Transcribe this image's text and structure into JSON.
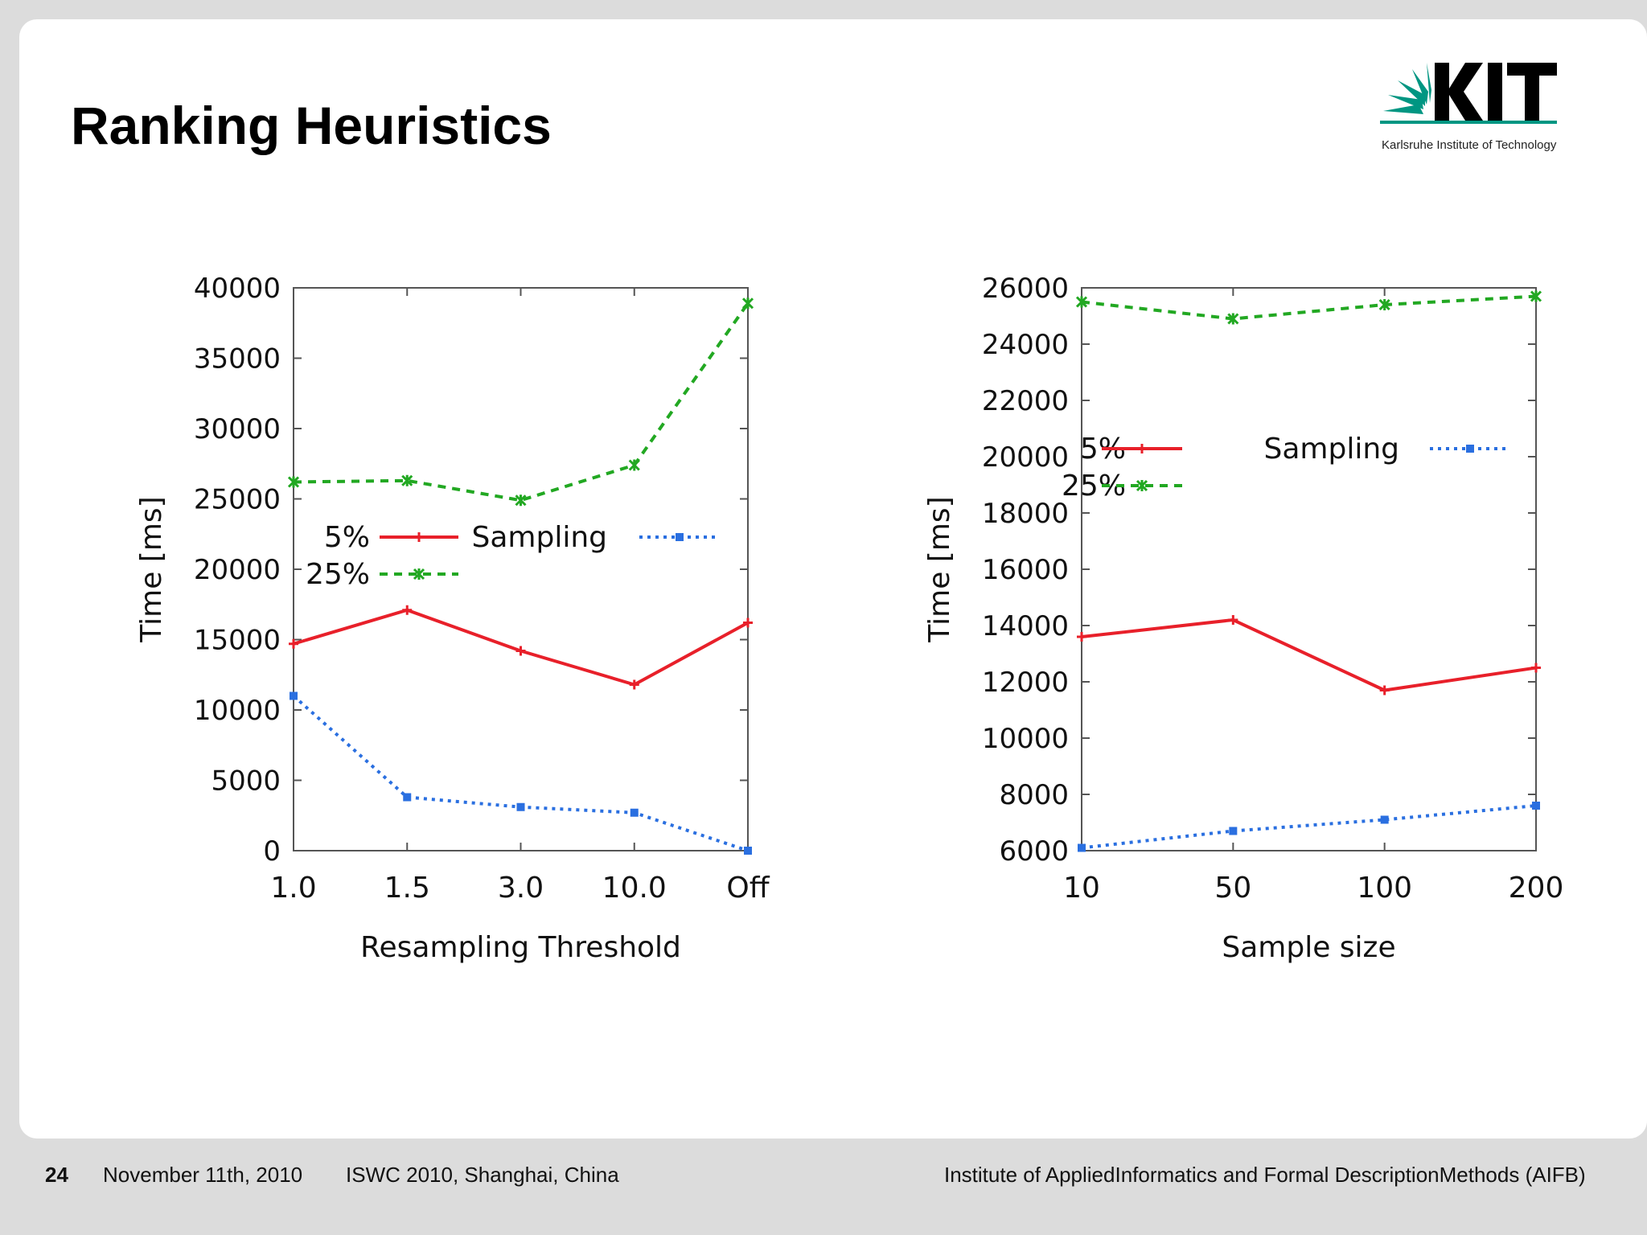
{
  "slide": {
    "title": "Ranking Heuristics",
    "logo": {
      "text": "KIT",
      "subtitle": "Karlsruhe Institute of Technology",
      "color": "#009682"
    }
  },
  "footer": {
    "page_number": "24",
    "date": "November 11th, 2010",
    "event": "ISWC 2010, Shanghai, China",
    "institute": "Institute of AppliedInformatics and Formal DescriptionMethods (AIFB)"
  },
  "chart_data": [
    {
      "type": "line",
      "xlabel": "Resampling Threshold",
      "ylabel": "Time [ms]",
      "categories": [
        "1.0",
        "1.5",
        "3.0",
        "10.0",
        "Off"
      ],
      "ylim": [
        0,
        40000
      ],
      "yticks": [
        0,
        5000,
        10000,
        15000,
        20000,
        25000,
        30000,
        35000,
        40000
      ],
      "legend_placement": "center-left",
      "series": [
        {
          "name": "5%",
          "values": [
            14700,
            17100,
            14200,
            11800,
            16200
          ],
          "color": "#e8202a",
          "style": "solid"
        },
        {
          "name": "25%",
          "values": [
            26200,
            26300,
            24900,
            27400,
            38900
          ],
          "color": "#22a822",
          "style": "dashed"
        },
        {
          "name": "Sampling",
          "values": [
            11000,
            3800,
            3100,
            2700,
            0
          ],
          "color": "#2a6fe0",
          "style": "dotted"
        }
      ]
    },
    {
      "type": "line",
      "xlabel": "Sample size",
      "ylabel": "Time [ms]",
      "categories": [
        "10",
        "50",
        "100",
        "200"
      ],
      "ylim": [
        6000,
        26000
      ],
      "yticks": [
        6000,
        8000,
        10000,
        12000,
        14000,
        16000,
        18000,
        20000,
        22000,
        24000,
        26000
      ],
      "legend_placement": "top-left",
      "series": [
        {
          "name": "5%",
          "values": [
            13600,
            14200,
            11700,
            12500
          ],
          "color": "#e8202a",
          "style": "solid"
        },
        {
          "name": "25%",
          "values": [
            25500,
            24900,
            25400,
            25700
          ],
          "color": "#22a822",
          "style": "dashed"
        },
        {
          "name": "Sampling",
          "values": [
            6100,
            6700,
            7100,
            7600
          ],
          "color": "#2a6fe0",
          "style": "dotted"
        }
      ]
    }
  ]
}
